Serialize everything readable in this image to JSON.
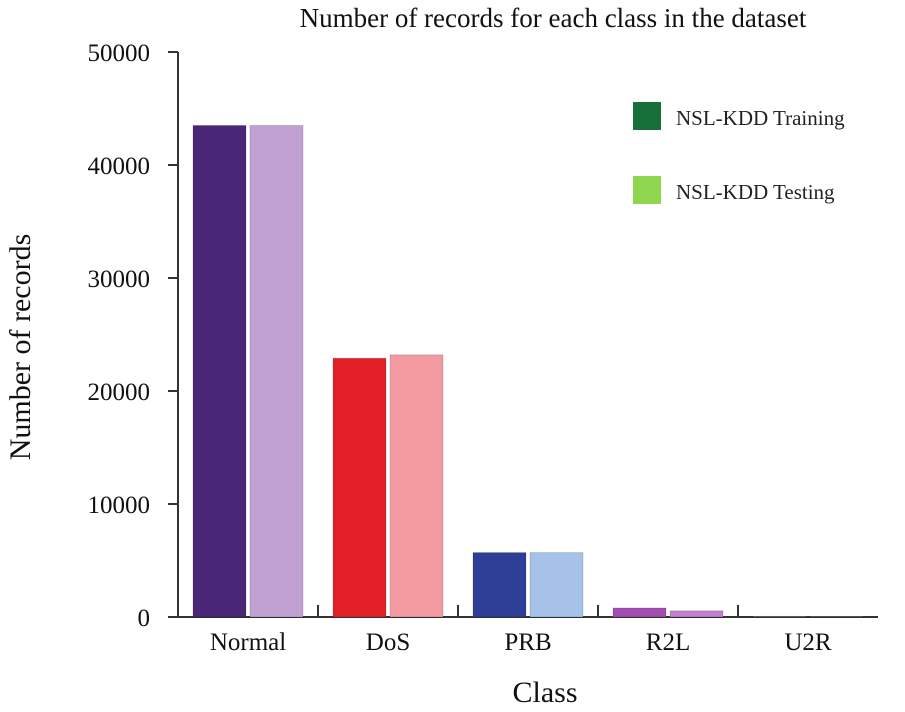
{
  "chart_data": {
    "type": "bar",
    "title": "Number of records for each class in the dataset",
    "xlabel": "Class",
    "ylabel": "Number of records",
    "ylim": [
      0,
      50000
    ],
    "yticks": [
      0,
      10000,
      20000,
      30000,
      40000,
      50000
    ],
    "categories": [
      "Normal",
      "DoS",
      "PRB",
      "R2L",
      "U2R"
    ],
    "series": [
      {
        "name": "NSL-KDD  Training",
        "values": [
          43500,
          22900,
          5700,
          800,
          50
        ],
        "legend_color": "#17703a",
        "bar_colors": [
          "#4a2676",
          "#e32027",
          "#2e3e96",
          "#a34db3",
          "#999999"
        ]
      },
      {
        "name": "NSL-KDD Testing",
        "values": [
          43500,
          23200,
          5700,
          550,
          30
        ],
        "legend_color": "#8fd64f",
        "bar_colors": [
          "#c0a1d1",
          "#f29a9f",
          "#a6c2e8",
          "#c47fcf",
          "#bbbbbb"
        ]
      }
    ],
    "grid": false,
    "legend_position": "top-right"
  }
}
